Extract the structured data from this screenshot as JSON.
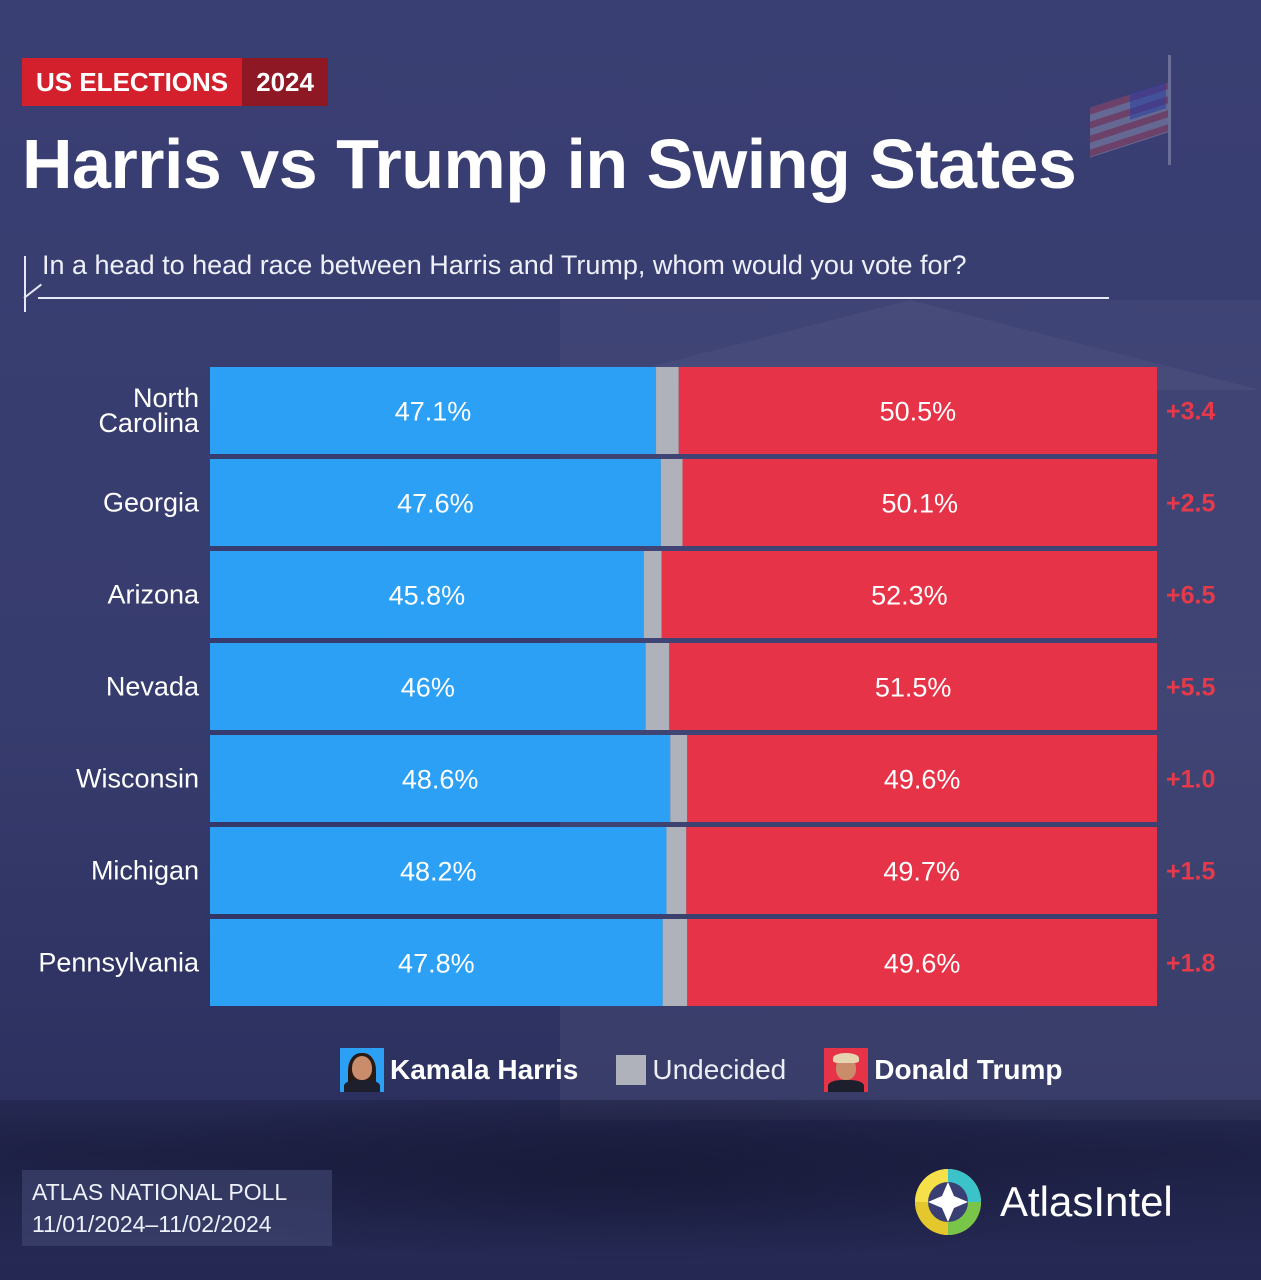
{
  "header": {
    "badge_left": "US ELECTIONS",
    "badge_right": "2024",
    "title": "Harris vs Trump in Swing States",
    "subtitle": "In a head to head race between Harris and Trump, whom would you vote for?"
  },
  "chart_data": {
    "type": "bar",
    "orientation": "horizontal",
    "stacked": true,
    "categories": [
      "North Carolina",
      "Georgia",
      "Arizona",
      "Nevada",
      "Wisconsin",
      "Michigan",
      "Pennsylvania"
    ],
    "category_lines": [
      [
        "North",
        "Carolina"
      ],
      [
        "Georgia"
      ],
      [
        "Arizona"
      ],
      [
        "Nevada"
      ],
      [
        "Wisconsin"
      ],
      [
        "Michigan"
      ],
      [
        "Pennsylvania"
      ]
    ],
    "series": [
      {
        "name": "Kamala Harris",
        "color": "#2ca0f5",
        "values": [
          47.1,
          47.6,
          45.8,
          46.0,
          48.6,
          48.2,
          47.8
        ],
        "labels": [
          "47.1%",
          "47.6%",
          "45.8%",
          "46%",
          "48.6%",
          "48.2%",
          "47.8%"
        ]
      },
      {
        "name": "Undecided",
        "color": "#b0b2bb",
        "values": [
          2.4,
          2.3,
          1.9,
          2.5,
          1.8,
          2.1,
          2.6
        ]
      },
      {
        "name": "Donald Trump",
        "color": "#e63347",
        "values": [
          50.5,
          50.1,
          52.3,
          51.5,
          49.6,
          49.7,
          49.6
        ],
        "labels": [
          "50.5%",
          "50.1%",
          "52.3%",
          "51.5%",
          "49.6%",
          "49.7%",
          "49.6%"
        ]
      }
    ],
    "margins": [
      "+3.4",
      "+2.5",
      "+6.5",
      "+5.5",
      "+1.0",
      "+1.5",
      "+1.8"
    ],
    "margin_color": "#e63a4b",
    "xlim": [
      0,
      100
    ],
    "legend_position": "bottom",
    "grid": false
  },
  "legend": {
    "harris": "Kamala Harris",
    "undecided": "Undecided",
    "trump": "Donald Trump"
  },
  "footer": {
    "source_line1": "ATLAS NATIONAL POLL",
    "source_line2": "11/01/2024–11/02/2024",
    "brand": "AtlasIntel"
  },
  "colors": {
    "background": "#3a3f73",
    "badge_red": "#d3202c",
    "badge_dark_red": "#8e1823",
    "harris_blue": "#2ca0f5",
    "trump_red": "#e63347",
    "undecided_gray": "#b0b2bb"
  }
}
